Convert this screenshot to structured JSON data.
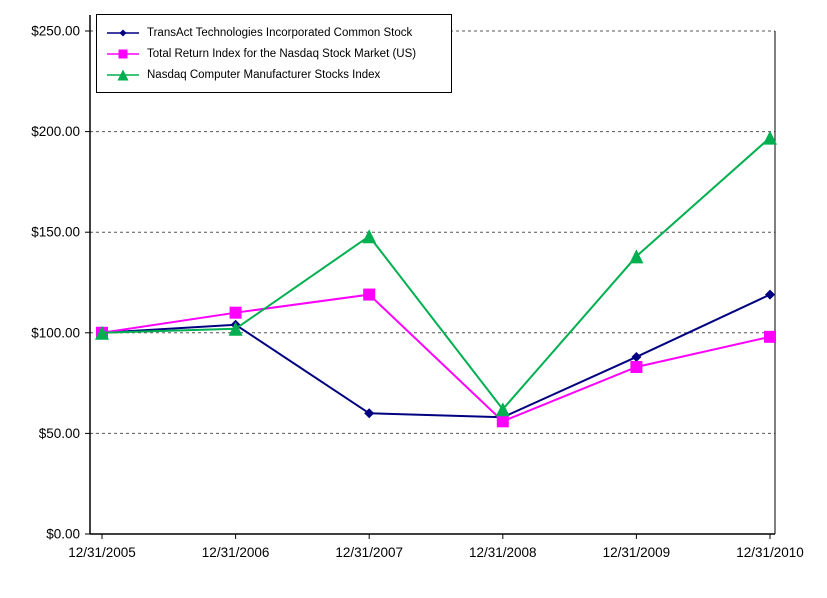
{
  "chart_data": {
    "type": "line",
    "title": "",
    "xlabel": "",
    "ylabel": "",
    "ylim": [
      0,
      250
    ],
    "grid": "horizontal-dashed",
    "legend_position": "top-left-inside",
    "categories": [
      "12/31/2005",
      "12/31/2006",
      "12/31/2007",
      "12/31/2008",
      "12/31/2009",
      "12/31/2010"
    ],
    "y_ticks": [
      {
        "label": "$250.00",
        "value": 250
      },
      {
        "label": "$200.00",
        "value": 200
      },
      {
        "label": "$150.00",
        "value": 150
      },
      {
        "label": "$100.00",
        "value": 100
      },
      {
        "label": "$50.00",
        "value": 50
      },
      {
        "label": "$0.00",
        "value": 0
      }
    ],
    "series": [
      {
        "name": "TransAct Technologies Incorporated Common Stock",
        "color": "#000080",
        "marker": "diamond",
        "marker_size": 5,
        "values": [
          100,
          104,
          60,
          58,
          88,
          119
        ]
      },
      {
        "name": "Total Return Index for the Nasdaq Stock Market (US)",
        "color": "#FF00FF",
        "marker": "square",
        "marker_size": 6,
        "values": [
          100,
          110,
          119,
          56,
          83,
          98
        ]
      },
      {
        "name": "Nasdaq Computer Manufacturer Stocks Index",
        "color": "#00B050",
        "marker": "triangle",
        "marker_size": 7,
        "values": [
          100,
          102,
          148,
          62,
          138,
          197
        ]
      }
    ],
    "colors": {
      "axis": "#000000",
      "gridline": "#555555",
      "background": "#ffffff"
    }
  }
}
